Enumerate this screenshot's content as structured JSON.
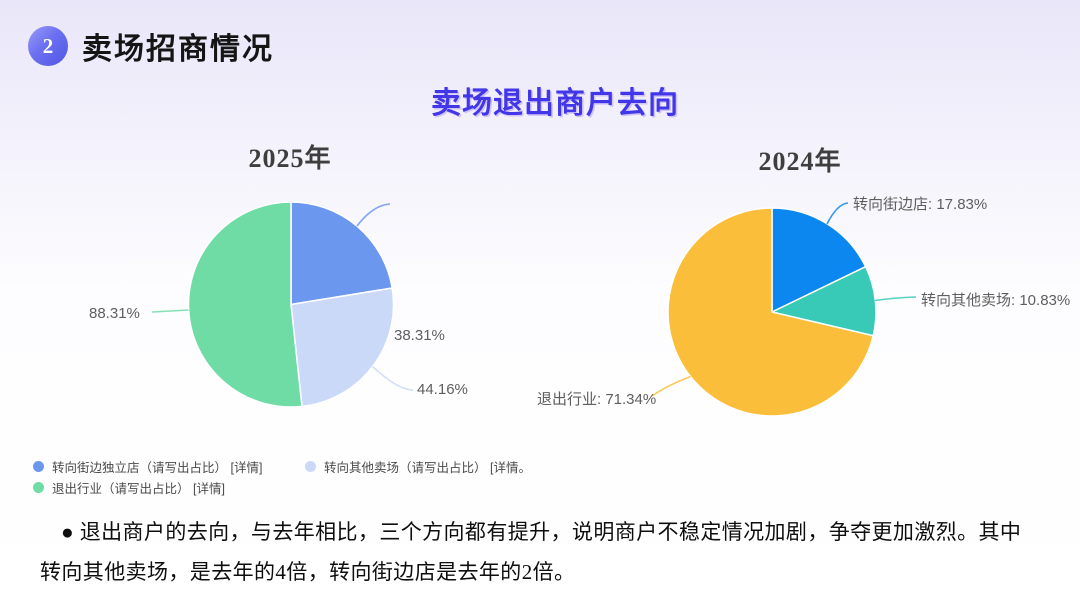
{
  "header": {
    "badge": "2",
    "title": "卖场招商情况"
  },
  "subtitle": "卖场退出商户去向",
  "chart_data": [
    {
      "type": "pie",
      "title": "2025年",
      "start_angle": 0,
      "slices": [
        {
          "name": "转向街边独立店",
          "value": 38.31,
          "label": "38.31%",
          "color": "#6C97EF"
        },
        {
          "name": "转向其他卖场",
          "value": 44.16,
          "label": "44.16%",
          "color": "#CBD9F8"
        },
        {
          "name": "退出行业",
          "value": 88.31,
          "label": "88.31%",
          "color": "#6FDCA6"
        }
      ],
      "note": "labeled percentages sum to 170.78; slice angles drawn proportional to values, clockwise from 12 o'clock"
    },
    {
      "type": "pie",
      "title": "2024年",
      "start_angle": 0,
      "slices": [
        {
          "name": "转向街边店",
          "value": 17.83,
          "label": "转向街边店: 17.83%",
          "color": "#0C87EF"
        },
        {
          "name": "转向其他卖场",
          "value": 10.83,
          "label": "转向其他卖场: 10.83%",
          "color": "#38C9B7"
        },
        {
          "name": "退出行业",
          "value": 71.34,
          "label": "退出行业: 71.34%",
          "color": "#FBBE3B"
        }
      ]
    }
  ],
  "legend": {
    "items": [
      {
        "label": "转向街边独立店（请写出占比） [详情]",
        "color": "#6C97EF"
      },
      {
        "label": "转向其他卖场（请写出占比） [详情。",
        "color": "#CBD9F8"
      },
      {
        "label": "退出行业（请写出占比） [详情]",
        "color": "#6FDCA6"
      }
    ]
  },
  "note": {
    "lines": [
      "● 退出商户的去向，与去年相比，三个方向都有提升，说明商户不稳定情况加剧，争夺更加激烈。其中",
      "转向其他卖场，是去年的4倍，转向街边店是去年的2倍。"
    ],
    "full_text": "退出商户的去向，与去年相比，三个方向都有提升，说明商户不稳定情况加剧，争夺更加激烈。其中转向其他卖场，是去年的4倍，转向街边店是去年的2倍。"
  }
}
